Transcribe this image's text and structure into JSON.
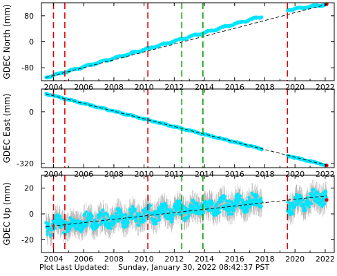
{
  "footer": {
    "label": "Plot Last Updated:",
    "value": "Sunday, January 30, 2022 08:42:37 PST"
  },
  "colors": {
    "data": "#00e5ff",
    "error_bars": "#b4b4b4",
    "model": "#000000",
    "equipment_change": "#e00000",
    "earthquake": "#00a000",
    "latest": "#e00000"
  },
  "chart_data": [
    {
      "type": "scatter",
      "ylabel": "GDEC North (mm)",
      "xlim": [
        2003.2,
        2022.6
      ],
      "ylim": [
        -120,
        120
      ],
      "x_ticks": [
        2004,
        2006,
        2008,
        2010,
        2012,
        2014,
        2016,
        2018,
        2020,
        2022
      ],
      "y_ticks": [
        -80,
        0,
        80
      ],
      "data_segments": [
        {
          "x": [
            2003.5,
            2017.8
          ],
          "y": [
            -110,
            78
          ]
        },
        {
          "x": [
            2019.5,
            2022.1
          ],
          "y": [
            98,
            115
          ]
        }
      ],
      "model_line": {
        "x": [
          2003.5,
          2022.1
        ],
        "y": [
          -110,
          115
        ]
      },
      "seasonal_amplitude": 2,
      "error_bar": 4,
      "red_dashed_lines": [
        2004.0,
        2004.75,
        2010.25,
        2019.5
      ],
      "green_dashed_lines": [
        2012.5,
        2013.9
      ]
    },
    {
      "type": "scatter",
      "ylabel": "GDEC East (mm)",
      "xlim": [
        2003.2,
        2022.6
      ],
      "ylim": [
        -345,
        140
      ],
      "x_ticks": [
        2004,
        2006,
        2008,
        2010,
        2012,
        2014,
        2016,
        2018,
        2020,
        2022
      ],
      "y_ticks": [
        -320,
        0
      ],
      "data_segments": [
        {
          "x": [
            2003.5,
            2017.8
          ],
          "y": [
            110,
            -230
          ]
        },
        {
          "x": [
            2019.5,
            2022.1
          ],
          "y": [
            -272,
            -330
          ]
        }
      ],
      "model_line": {
        "x": [
          2003.5,
          2022.1
        ],
        "y": [
          110,
          -330
        ]
      },
      "seasonal_amplitude": 2,
      "error_bar": 5,
      "red_dashed_lines": [
        2004.0,
        2004.75,
        2010.25,
        2019.5
      ],
      "green_dashed_lines": [
        2012.5,
        2013.9
      ]
    },
    {
      "type": "scatter",
      "ylabel": "GDEC Up (mm)",
      "xlim": [
        2003.2,
        2022.6
      ],
      "ylim": [
        -30,
        30
      ],
      "x_ticks": [
        2004,
        2006,
        2008,
        2010,
        2012,
        2014,
        2016,
        2018,
        2020,
        2022
      ],
      "y_ticks": [
        -20,
        0,
        20
      ],
      "data_segments": [
        {
          "x": [
            2003.5,
            2017.8
          ],
          "y": [
            -10,
            10
          ]
        },
        {
          "x": [
            2019.5,
            2022.1
          ],
          "y": [
            6,
            14
          ]
        }
      ],
      "model_line": {
        "x": [
          2003.5,
          2022.1
        ],
        "y": [
          -10,
          14
        ]
      },
      "seasonal_amplitude": 3,
      "error_bar": 8,
      "red_dashed_lines": [
        2004.0,
        2004.75,
        2010.25,
        2019.5
      ],
      "green_dashed_lines": [
        2012.5,
        2013.9
      ]
    }
  ]
}
